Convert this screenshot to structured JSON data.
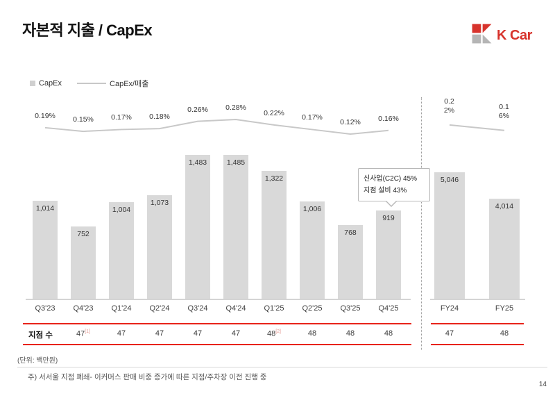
{
  "slide": {
    "title": "자본적 지출 / CapEx",
    "logo_text": "K Car",
    "unit_note": "(단위: 백만원)",
    "footnote": "주) 서서울 지점 폐쇄- 이커머스 판매 비중 증가에 따른 지점/주차장 이전 진행 중",
    "page_number": "14"
  },
  "legend": {
    "bar": "CapEx",
    "line": "CapEx/매출"
  },
  "callout": {
    "lines": [
      "신사업(C2C) 45%",
      "지점 설비 43%"
    ]
  },
  "branch_table": {
    "label": "지점 수",
    "quarterly": [
      {
        "col": "Q3'23",
        "value": "",
        "sup": ""
      },
      {
        "col": "Q4'23",
        "value": "47",
        "sup": "[1]"
      },
      {
        "col": "Q1'24",
        "value": "47",
        "sup": ""
      },
      {
        "col": "Q2'24",
        "value": "47",
        "sup": ""
      },
      {
        "col": "Q3'24",
        "value": "47",
        "sup": ""
      },
      {
        "col": "Q4'24",
        "value": "47",
        "sup": ""
      },
      {
        "col": "Q1'25",
        "value": "48",
        "sup": "[2]"
      },
      {
        "col": "Q2'25",
        "value": "48",
        "sup": ""
      },
      {
        "col": "Q3'25",
        "value": "48",
        "sup": ""
      },
      {
        "col": "Q4'25",
        "value": "48",
        "sup": ""
      }
    ],
    "fy": [
      {
        "col": "FY24",
        "value": "47",
        "sup": ""
      },
      {
        "col": "FY25",
        "value": "48",
        "sup": ""
      }
    ]
  },
  "chart_data": [
    {
      "type": "bar",
      "section": "quarterly",
      "title": "자본적 지출 / CapEx",
      "unit": "백만원",
      "categories": [
        "Q3'23",
        "Q4'23",
        "Q1'24",
        "Q2'24",
        "Q3'24",
        "Q4'24",
        "Q1'25",
        "Q2'25",
        "Q3'25",
        "Q4'25"
      ],
      "series": [
        {
          "name": "CapEx",
          "type": "bar",
          "values": [
            1014,
            752,
            1004,
            1073,
            1483,
            1485,
            1322,
            1006,
            768,
            919
          ],
          "labels": [
            "1,014",
            "752",
            "1,004",
            "1,073",
            "1,483",
            "1,485",
            "1,322",
            "1,006",
            "768",
            "919"
          ]
        },
        {
          "name": "CapEx/매출",
          "type": "line",
          "values": [
            0.19,
            0.15,
            0.17,
            0.18,
            0.26,
            0.28,
            0.22,
            0.17,
            0.12,
            0.16
          ],
          "labels": [
            "0.19%",
            "0.15%",
            "0.17%",
            "0.18%",
            "0.26%",
            "0.28%",
            "0.22%",
            "0.17%",
            "0.12%",
            "0.16%"
          ]
        }
      ],
      "legend_position": "top-left",
      "grid": false
    },
    {
      "type": "bar",
      "section": "fiscal-year",
      "unit": "백만원",
      "categories": [
        "FY24",
        "FY25"
      ],
      "series": [
        {
          "name": "CapEx",
          "type": "bar",
          "values": [
            5046,
            4014
          ],
          "labels": [
            "5,046",
            "4,014"
          ]
        },
        {
          "name": "CapEx/매출",
          "type": "line",
          "values": [
            0.22,
            0.16
          ],
          "labels": [
            "0.22%",
            "0.16%"
          ]
        }
      ],
      "grid": false
    }
  ],
  "colors": {
    "bar_fill": "#d9d9d9",
    "line_stroke": "#c8c8c8",
    "table_rule_red": "#e8231a",
    "logo_red": "#d7332c",
    "logo_gray": "#b5b5b5"
  }
}
